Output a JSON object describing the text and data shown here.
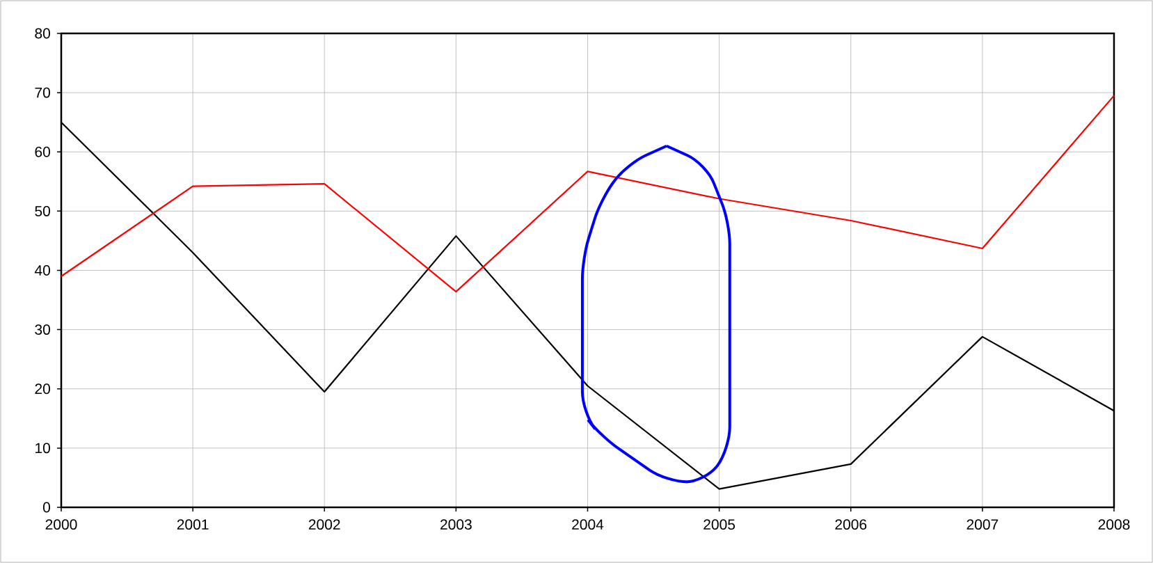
{
  "chart_data": {
    "type": "line",
    "x": [
      2000,
      2001,
      2002,
      2003,
      2004,
      2005,
      2006,
      2007,
      2008
    ],
    "series": [
      {
        "color": "#000000",
        "values": [
          65,
          43,
          19.5,
          45.8,
          20.5,
          3.1,
          7.3,
          28.8,
          16.3
        ]
      },
      {
        "color": "#ff0000",
        "values": [
          39,
          54.2,
          54.6,
          36.4,
          56.7,
          52.1,
          48.4,
          43.7,
          69.5
        ]
      }
    ],
    "xlim": [
      2000,
      2008
    ],
    "ylim": [
      0,
      80
    ],
    "xticks": [
      2000,
      2001,
      2002,
      2003,
      2004,
      2005,
      2006,
      2007,
      2008
    ],
    "yticks": [
      0,
      10,
      20,
      30,
      40,
      50,
      60,
      70,
      80
    ],
    "grid": true,
    "marker": "none",
    "line_style": "solid"
  }
}
